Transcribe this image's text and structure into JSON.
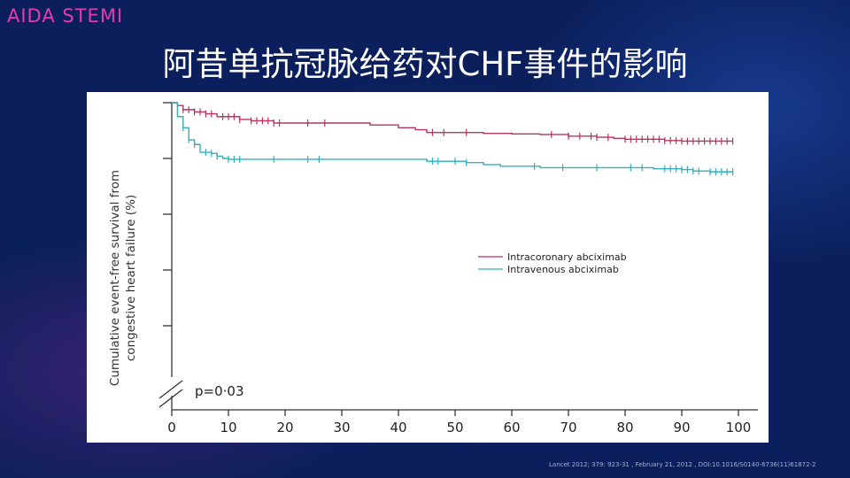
{
  "header": {
    "tag": "AIDA STEMI",
    "title": "阿昔单抗冠脉给药对CHF事件的影响"
  },
  "citation": "Lancet 2012; 379: 923-31 , February 21, 2012 , DOI:10.1016/S0140-6736(11)61872-2",
  "colors": {
    "intracoronary": "#b8345e",
    "intravenous": "#2fb0bc",
    "axis": "#333333"
  },
  "chart_data": {
    "type": "line",
    "step": true,
    "title": "",
    "xlabel": "",
    "ylabel": "Cumulative event-free survival from congestive heart failure (%)",
    "xlim": [
      0,
      100
    ],
    "ylim_steps": 5,
    "x_ticks": [
      "0",
      "10",
      "20",
      "30",
      "40",
      "50",
      "60",
      "70",
      "80",
      "90",
      "100"
    ],
    "axis_break": true,
    "annotation": "p=0·03",
    "legend": {
      "position": "center-right"
    },
    "series": [
      {
        "name": "Intracoronary abciximab",
        "color": "#b8345e",
        "y_unit_note": "y values are survival levels in fraction of the top axis tick span",
        "x": [
          0,
          1,
          2,
          4,
          6,
          8,
          12,
          14,
          18,
          24,
          30,
          35,
          40,
          43,
          45,
          50,
          55,
          60,
          65,
          70,
          75,
          78,
          80,
          85,
          87,
          90,
          95,
          99
        ],
        "y": [
          1.0,
          0.99,
          0.975,
          0.967,
          0.96,
          0.95,
          0.94,
          0.935,
          0.927,
          0.927,
          0.927,
          0.92,
          0.91,
          0.903,
          0.893,
          0.893,
          0.89,
          0.888,
          0.886,
          0.88,
          0.876,
          0.872,
          0.869,
          0.869,
          0.864,
          0.862,
          0.862,
          0.862
        ],
        "censor_x": [
          2,
          3,
          4,
          5,
          6,
          7,
          9,
          10,
          11,
          12,
          14,
          15,
          16,
          17,
          18,
          19,
          24,
          27,
          46,
          48,
          52,
          67,
          70,
          72,
          74,
          75,
          77,
          80,
          81,
          82,
          83,
          84,
          85,
          86,
          87,
          88,
          89,
          90,
          91,
          92,
          93,
          94,
          95,
          96,
          97,
          98,
          99
        ]
      },
      {
        "name": "Intravenous abciximab",
        "color": "#2fb0bc",
        "x": [
          0,
          1,
          2,
          3,
          4,
          5,
          7,
          8,
          9,
          10,
          15,
          20,
          30,
          41,
          45,
          50,
          52,
          55,
          58,
          65,
          70,
          80,
          85,
          90,
          92,
          95,
          99
        ],
        "y": [
          1.0,
          0.95,
          0.91,
          0.867,
          0.85,
          0.822,
          0.818,
          0.808,
          0.8,
          0.797,
          0.797,
          0.797,
          0.797,
          0.797,
          0.79,
          0.79,
          0.785,
          0.778,
          0.772,
          0.767,
          0.767,
          0.767,
          0.763,
          0.76,
          0.755,
          0.752,
          0.752
        ],
        "censor_x": [
          2,
          3,
          4,
          6,
          7,
          8,
          10,
          11,
          12,
          18,
          24,
          26,
          46,
          47,
          50,
          52,
          64,
          69,
          75,
          81,
          83,
          87,
          88,
          89,
          90,
          91,
          92,
          93,
          95,
          96,
          97,
          98,
          99
        ]
      }
    ]
  }
}
